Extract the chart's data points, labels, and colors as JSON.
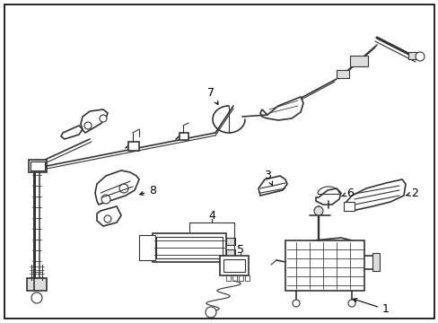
{
  "background_color": "#ffffff",
  "border_color": "#000000",
  "border_linewidth": 1.2,
  "fig_width": 4.89,
  "fig_height": 3.6,
  "dpi": 100,
  "line_color": "#333333",
  "font_size": 9
}
